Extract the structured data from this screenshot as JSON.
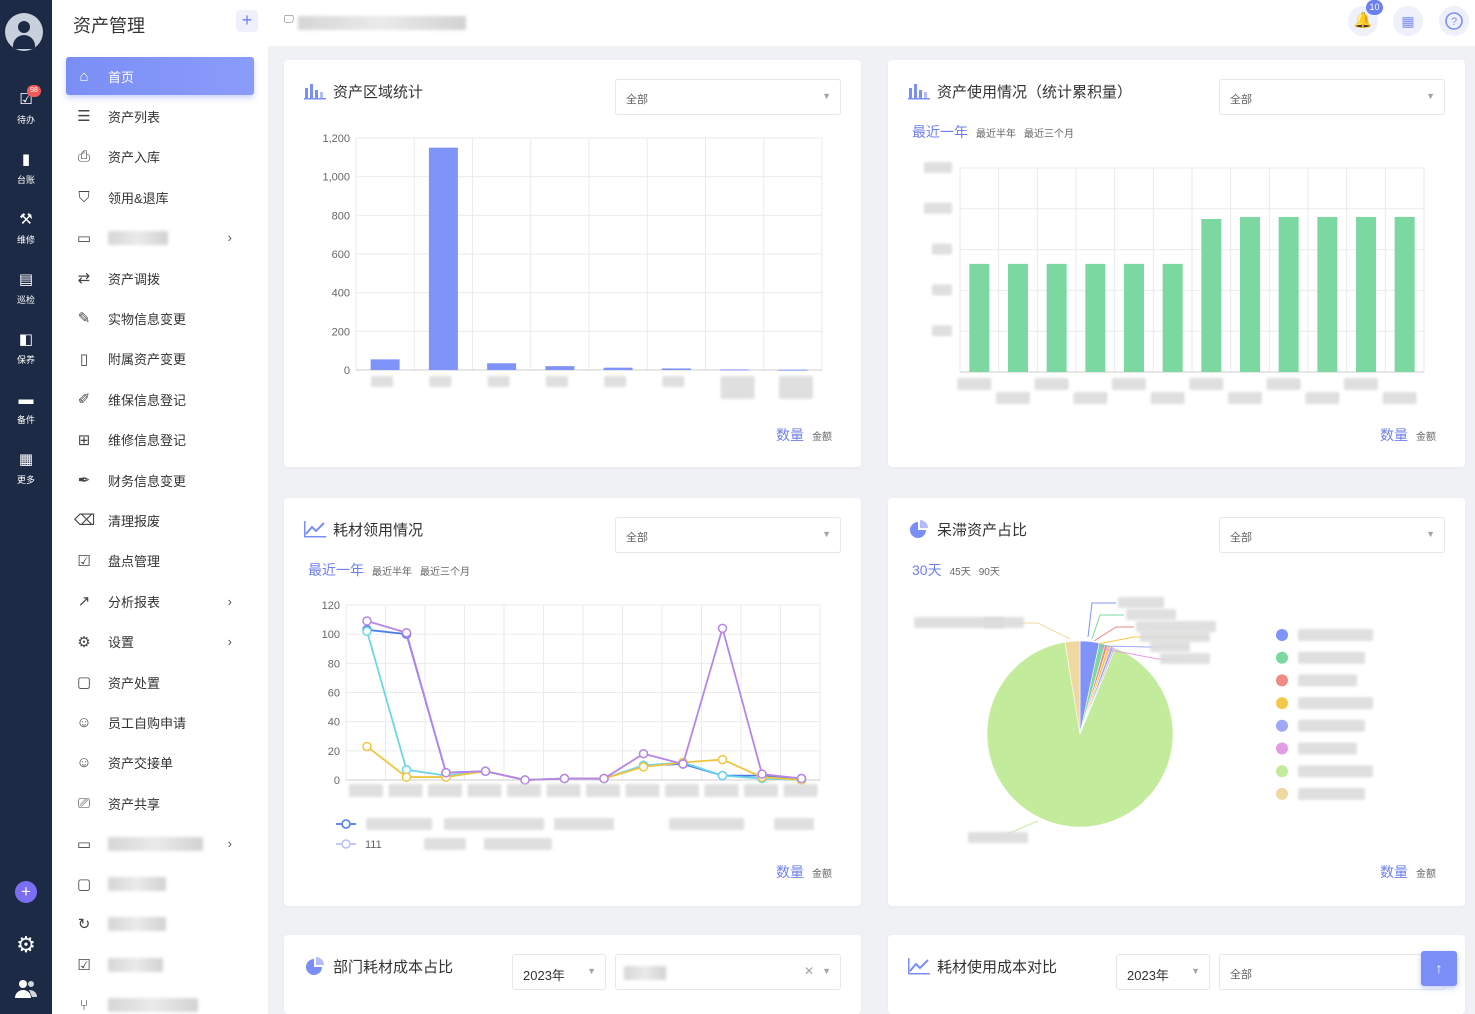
{
  "rail": {
    "items": [
      {
        "label": "待办",
        "icon": "todo-icon",
        "badge": "98"
      },
      {
        "label": "台账",
        "icon": "ledger-icon"
      },
      {
        "label": "维修",
        "icon": "repair-icon"
      },
      {
        "label": "巡检",
        "icon": "inspect-icon"
      },
      {
        "label": "保养",
        "icon": "maintain-icon"
      },
      {
        "label": "备件",
        "icon": "spare-icon"
      },
      {
        "label": "更多",
        "icon": "more-icon"
      }
    ]
  },
  "menu": {
    "title": "资产管理",
    "items": [
      {
        "label": "首页",
        "icon": "home-icon",
        "active": true
      },
      {
        "label": "资产列表",
        "icon": "list-icon"
      },
      {
        "label": "资产入库",
        "icon": "inbox-icon"
      },
      {
        "label": "领用&退库",
        "icon": "shield-icon"
      },
      {
        "label": "",
        "icon": "folder-icon",
        "arrow": true,
        "blurred": true
      },
      {
        "label": "资产调拨",
        "icon": "transfer-icon"
      },
      {
        "label": "实物信息变更",
        "icon": "edit-icon"
      },
      {
        "label": "附属资产变更",
        "icon": "file-icon"
      },
      {
        "label": "维保信息登记",
        "icon": "pencil-icon"
      },
      {
        "label": "维修信息登记",
        "icon": "file-plus-icon"
      },
      {
        "label": "财务信息变更",
        "icon": "pen-icon"
      },
      {
        "label": "清理报废",
        "icon": "trash-icon"
      },
      {
        "label": "盘点管理",
        "icon": "check-icon"
      },
      {
        "label": "分析报表",
        "icon": "trend-icon",
        "arrow": true
      },
      {
        "label": "设置",
        "icon": "gear-icon",
        "arrow": true
      },
      {
        "label": "资产处置",
        "icon": "clipboard-icon"
      },
      {
        "label": "员工自购申请",
        "icon": "user-icon"
      },
      {
        "label": "资产交接单",
        "icon": "user-add-icon"
      },
      {
        "label": "资产共享",
        "icon": "share-icon"
      },
      {
        "label": "",
        "icon": "folder-icon",
        "arrow": true,
        "blurred": true
      },
      {
        "label": "",
        "icon": "clipboard-icon",
        "blurred": true
      },
      {
        "label": "",
        "icon": "refresh-icon",
        "blurred": true
      },
      {
        "label": "",
        "icon": "check-icon",
        "blurred": true
      },
      {
        "label": "",
        "icon": "branch-icon",
        "blurred": true
      }
    ]
  },
  "topbar": {
    "notification_count": "10"
  },
  "cards": {
    "region": {
      "title": "资产区域统计",
      "select": "全部",
      "metric_active": "数量",
      "metric_other": "金额"
    },
    "usage": {
      "title": "资产使用情况（统计累积量）",
      "select": "全部",
      "range_active": "最近一年",
      "range_other1": "最近半年",
      "range_other2": "最近三个月",
      "metric_active": "数量",
      "metric_other": "金额"
    },
    "consumable": {
      "title": "耗材领用情况",
      "select": "全部",
      "range_active": "最近一年",
      "range_other1": "最近半年",
      "range_other2": "最近三个月",
      "metric_active": "数量",
      "metric_other": "金额",
      "legend_visible": "111"
    },
    "idle": {
      "title": "呆滞资产占比",
      "select": "全部",
      "range_active": "30天",
      "range_other1": "45天",
      "range_other2": "90天",
      "metric_active": "数量",
      "metric_other": "金额"
    },
    "dept_cost": {
      "title": "部门耗材成本占比",
      "year": "2023年"
    },
    "cost_compare": {
      "title": "耗材使用成本对比",
      "year": "2023年",
      "select": "全部"
    }
  },
  "colors": {
    "accent": "#6f80ec",
    "rail_bg": "#1d2a45",
    "bar_blue": "#8093f9",
    "bar_green": "#7bd8a0"
  },
  "chart_data": [
    {
      "type": "bar",
      "name": "资产区域统计",
      "categories": [
        "",
        "",
        "",
        "",
        "",
        "",
        "",
        ""
      ],
      "values": [
        55,
        1150,
        35,
        20,
        12,
        8,
        3,
        2
      ],
      "ylim": [
        0,
        1200
      ],
      "yticks": [
        "0",
        "200",
        "400",
        "600",
        "800",
        "1,000",
        "1,200"
      ],
      "color": "#8093f9"
    },
    {
      "type": "bar",
      "name": "资产使用情况",
      "categories": [
        "",
        "",
        "",
        "",
        "",
        "",
        "",
        "",
        "",
        "",
        "",
        ""
      ],
      "values": [
        0.53,
        0.53,
        0.53,
        0.53,
        0.53,
        0.53,
        0.75,
        0.76,
        0.76,
        0.76,
        0.76,
        0.76
      ],
      "color": "#7bd8a0"
    },
    {
      "type": "line",
      "name": "耗材领用情况",
      "ylim": [
        0,
        120
      ],
      "yticks": [
        "0",
        "20",
        "40",
        "60",
        "80",
        "100",
        "120"
      ],
      "series": [
        {
          "color": "#4a7cf0",
          "values": [
            103,
            100,
            5,
            6,
            0,
            1,
            1,
            10,
            11,
            3,
            3,
            1
          ]
        },
        {
          "color": "#6dd6e6",
          "values": [
            102,
            7,
            3,
            6,
            0,
            1,
            1,
            10,
            12,
            3,
            1,
            0
          ]
        },
        {
          "color": "#f0c542",
          "values": [
            23,
            2,
            2,
            6,
            0,
            1,
            1,
            9,
            12,
            14,
            2,
            0
          ]
        },
        {
          "color": "#b685e8",
          "values": [
            109,
            101,
            5,
            6,
            0,
            1,
            1,
            18,
            11,
            104,
            4,
            1
          ]
        }
      ]
    },
    {
      "type": "pie",
      "name": "呆滞资产占比",
      "slices": [
        {
          "color": "#8093f9",
          "value": 3.2
        },
        {
          "color": "#7bd8a0",
          "value": 1.0
        },
        {
          "color": "#f08a83",
          "value": 0.5
        },
        {
          "color": "#f5c84c",
          "value": 0.5
        },
        {
          "color": "#9da9f6",
          "value": 0.5
        },
        {
          "color": "#e39be6",
          "value": 0.3
        },
        {
          "color": "#c3eb9c",
          "value": 88.0
        },
        {
          "color": "#efd9a0",
          "value": 2.5
        }
      ],
      "legend_colors": [
        "#8093f9",
        "#7bd8a0",
        "#f08a83",
        "#f5c84c",
        "#9da9f6",
        "#e39be6",
        "#c3eb9c",
        "#efd9a0"
      ]
    }
  ]
}
